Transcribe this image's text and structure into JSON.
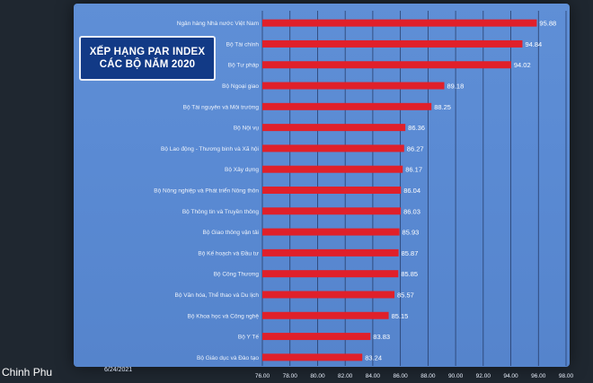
{
  "chart_data": {
    "type": "bar",
    "orientation": "horizontal",
    "title": [
      "XẾP HẠNG PAR INDEX",
      "CÁC BỘ NĂM 2020"
    ],
    "categories": [
      "Ngân hàng Nhà nước Việt Nam",
      "Bộ Tài chính",
      "Bộ Tư pháp",
      "Bộ Ngoại giao",
      "Bộ Tài nguyên và Môi trường",
      "Bộ Nội vụ",
      "Bộ Lao động - Thương binh và Xã hội",
      "Bộ Xây dựng",
      "Bộ Nông nghiệp và Phát triển Nông thôn",
      "Bộ Thông tin và Truyền thông",
      "Bộ Giao thông vận tải",
      "Bộ Kế hoạch và Đầu tư",
      "Bộ Công Thương",
      "Bộ Văn hóa, Thể thao và Du lịch",
      "Bộ Khoa học và Công nghệ",
      "Bộ Y Tế",
      "Bộ Giáo dục và Đào tạo"
    ],
    "values": [
      95.88,
      94.84,
      94.02,
      89.18,
      88.25,
      86.36,
      86.27,
      86.17,
      86.04,
      86.03,
      85.93,
      85.87,
      85.85,
      85.57,
      85.15,
      83.83,
      83.24
    ],
    "value_labels": [
      "95.88",
      "94.84",
      "94.02",
      "89.18",
      "88.25",
      "86.36",
      "86.27",
      "86.17",
      "86.04",
      "86.03",
      "85.93",
      "85.87",
      "85.85",
      "85.57",
      "85.15",
      "83.83",
      "83.24"
    ],
    "xlim": [
      76,
      98
    ],
    "xticks": [
      "76.00",
      "78.00",
      "80.00",
      "82.00",
      "84.00",
      "86.00",
      "88.00",
      "90.00",
      "92.00",
      "94.00",
      "96.00",
      "98.00"
    ],
    "grid": true,
    "bar_color": "#e0202a"
  },
  "footer": {
    "left_text": "Chinh Phu",
    "date": "6/24/2021"
  }
}
